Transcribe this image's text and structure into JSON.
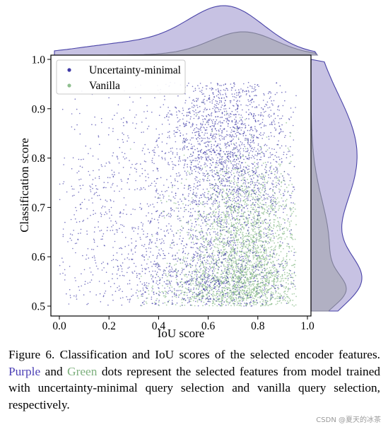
{
  "chart_data": {
    "type": "scatter",
    "title": "",
    "xlabel": "IoU score",
    "ylabel": "Classification score",
    "xlim": [
      0.0,
      1.0
    ],
    "ylim": [
      0.5,
      1.0
    ],
    "x_ticks": [
      "0.0",
      "0.2",
      "0.4",
      "0.6",
      "0.8",
      "1.0"
    ],
    "y_ticks": [
      "0.5",
      "0.6",
      "0.7",
      "0.8",
      "0.9",
      "1.0"
    ],
    "grid": false,
    "legend_position": "top-left",
    "marginal_plots": "density curves on top (IoU) and right (classification score)",
    "series": [
      {
        "name": "Uncertainty-minimal",
        "color": "#3f3aa6",
        "fill_color": "#b9b3dc",
        "description_of_distribution": [
          {
            "x": 0.68,
            "y": 0.82,
            "sx": 0.14,
            "sy": 0.11,
            "w": 0.55
          },
          {
            "x": 0.6,
            "y": 0.55,
            "sx": 0.2,
            "sy": 0.05,
            "w": 0.25
          },
          {
            "x": 0.25,
            "y": 0.66,
            "sx": 0.2,
            "sy": 0.14,
            "w": 0.2
          }
        ],
        "marginal_x_peak": 0.7,
        "marginal_y_peak": 0.55
      },
      {
        "name": "Vanilla",
        "color": "#8fbf8f",
        "fill_color": "#a9a9b8",
        "description_of_distribution": [
          {
            "x": 0.75,
            "y": 0.62,
            "sx": 0.12,
            "sy": 0.09,
            "w": 0.7
          },
          {
            "x": 0.7,
            "y": 0.53,
            "sx": 0.15,
            "sy": 0.03,
            "w": 0.3
          }
        ],
        "marginal_x_peak": 0.76,
        "marginal_y_peak": 0.56
      }
    ]
  },
  "caption": {
    "lead": "Figure 6.  Classification and IoU scores of the selected encoder features. ",
    "purple_word": "Purple",
    "middle": " and ",
    "green_word": "Green",
    "tail": " dots represent the selected features from model trained with uncertainty-minimal query selection and vanilla query selection, respectively."
  },
  "watermark": "CSDN @夏天的冰茶"
}
